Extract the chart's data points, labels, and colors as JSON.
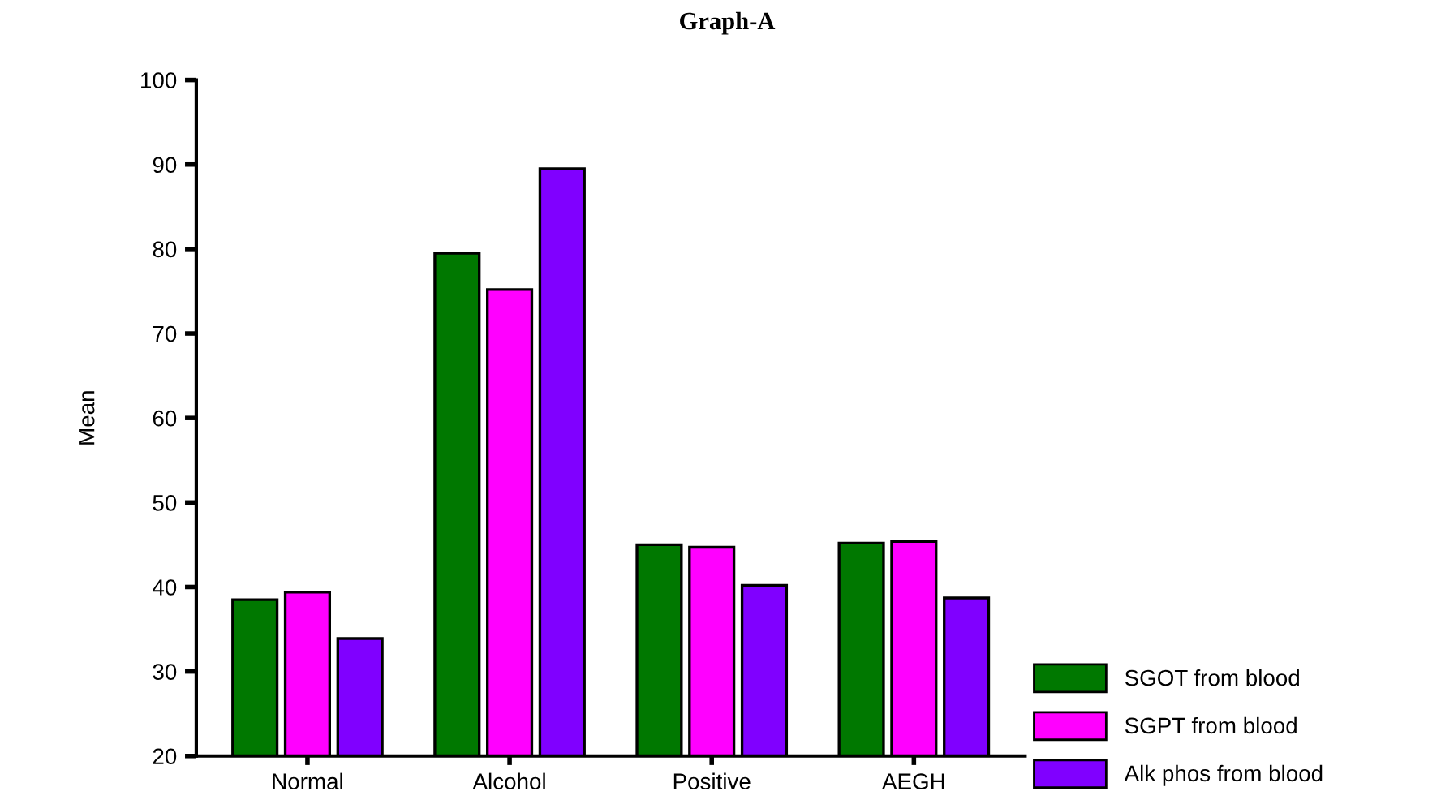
{
  "chart_data": {
    "type": "bar",
    "title": "Graph-A",
    "ylabel": "Mean",
    "categories": [
      "Normal",
      "Alcohol",
      "Positive",
      "AEGH"
    ],
    "series": [
      {
        "name": "SGOT from blood",
        "color": "#007800",
        "values": [
          38.5,
          79.5,
          45.0,
          45.2
        ]
      },
      {
        "name": "SGPT from blood",
        "color": "#ff00ff",
        "values": [
          39.4,
          75.2,
          44.7,
          45.4
        ]
      },
      {
        "name": "Alk phos from blood",
        "color": "#8000ff",
        "values": [
          33.9,
          89.5,
          40.2,
          38.7
        ]
      }
    ],
    "ylim": [
      20,
      100
    ],
    "yticks": [
      20,
      30,
      40,
      50,
      60,
      70,
      80,
      90,
      100
    ],
    "grid": false,
    "legend": "bottom right"
  }
}
